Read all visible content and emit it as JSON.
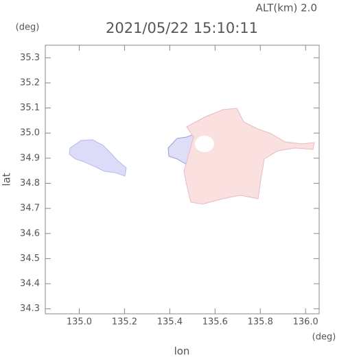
{
  "chart_data": {
    "type": "map",
    "title": "2021/05/22 15:10:11",
    "annotation": "ALT(km) 2.0",
    "ylabel": "lat",
    "yunit": "(deg)",
    "xlabel": "lon",
    "xunit": "(deg)",
    "xlim": [
      134.85,
      136.06
    ],
    "ylim": [
      34.28,
      35.35
    ],
    "xticks": [
      {
        "value": 135,
        "label": "135.0"
      },
      135.2,
      135.4,
      135.6,
      135.8,
      {
        "value": 136,
        "label": "136.0"
      }
    ],
    "yticks": [
      34.3,
      34.4,
      34.5,
      34.6,
      34.7,
      34.8,
      34.9,
      {
        "value": 35,
        "label": "35.0"
      },
      35.1,
      35.2,
      35.3
    ]
  }
}
